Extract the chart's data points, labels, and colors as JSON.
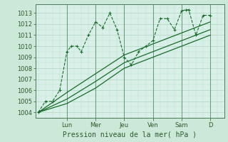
{
  "background_color": "#cce8d8",
  "plot_bg_color": "#d8f0e8",
  "grid_color": "#b0d4c0",
  "line_color": "#1a6b2a",
  "ylim": [
    1003.5,
    1013.8
  ],
  "yticks": [
    1004,
    1005,
    1006,
    1007,
    1008,
    1009,
    1010,
    1011,
    1012,
    1013
  ],
  "xlabel": "Pression niveau de la mer( hPa )",
  "xlabel_fontsize": 7,
  "tick_fontsize": 6,
  "day_labels": [
    "Lun",
    "Mer",
    "Jeu",
    "Ven",
    "Sam",
    "D"
  ],
  "day_positions": [
    2.0,
    4.0,
    6.0,
    8.0,
    10.0,
    12.0
  ],
  "xlim": [
    -0.2,
    13.0
  ],
  "lines": [
    {
      "x": [
        0.0,
        0.5,
        1.0,
        1.5,
        2.0,
        2.3,
        2.7,
        3.0,
        3.5,
        4.0,
        4.5,
        5.0,
        5.5,
        6.0,
        6.5,
        7.0,
        7.5,
        8.0,
        8.5,
        9.0,
        9.5,
        10.0,
        10.3,
        10.5,
        11.0,
        11.5,
        12.0
      ],
      "y": [
        1004.0,
        1005.0,
        1005.0,
        1006.0,
        1009.5,
        1010.0,
        1010.0,
        1009.5,
        1011.0,
        1012.2,
        1011.7,
        1013.0,
        1011.5,
        1009.0,
        1008.3,
        1009.5,
        1010.0,
        1010.5,
        1012.5,
        1012.5,
        1011.5,
        1013.2,
        1013.3,
        1013.3,
        1011.0,
        1012.8,
        1012.8
      ],
      "marker": "+"
    },
    {
      "x": [
        0.0,
        2.0,
        4.0,
        6.0,
        8.0,
        10.0,
        12.0
      ],
      "y": [
        1004.0,
        1005.8,
        1007.5,
        1009.2,
        1010.2,
        1011.2,
        1012.2
      ],
      "marker": null
    },
    {
      "x": [
        0.0,
        2.0,
        4.0,
        6.0,
        8.0,
        10.0,
        12.0
      ],
      "y": [
        1004.0,
        1005.2,
        1006.8,
        1008.5,
        1009.5,
        1010.5,
        1011.5
      ],
      "marker": null
    },
    {
      "x": [
        0.0,
        2.0,
        4.0,
        6.0,
        8.0,
        10.0,
        12.0
      ],
      "y": [
        1004.0,
        1004.8,
        1006.2,
        1008.0,
        1009.0,
        1010.0,
        1011.0
      ],
      "marker": null
    }
  ]
}
